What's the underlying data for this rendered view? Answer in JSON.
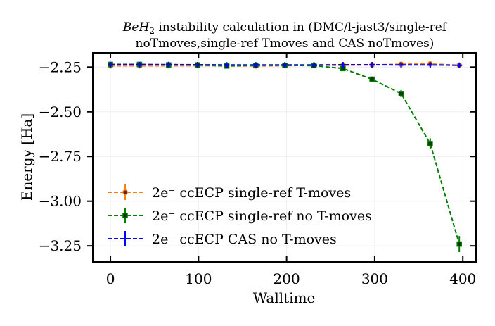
{
  "chart_data": {
    "type": "line",
    "title_line1_italic": "BeH",
    "title_line1_subscript": "2",
    "title_line1_rest": " instability calculation in (DMC/l-jast3/single-ref",
    "title_line2": "noTmoves,single-ref Tmoves and CAS noTmoves)",
    "xlabel": "Walltime",
    "ylabel": "Energy [Ha]",
    "xlim": [
      -20,
      415
    ],
    "ylim": [
      -3.34,
      -2.17
    ],
    "xticks": [
      0,
      100,
      200,
      300,
      400
    ],
    "xtick_labels": [
      "0",
      "100",
      "200",
      "300",
      "400"
    ],
    "yticks": [
      -2.25,
      -2.5,
      -2.75,
      -3.0,
      -3.25
    ],
    "ytick_labels": [
      "−2.25",
      "−2.50",
      "−2.75",
      "−3.00",
      "−3.25"
    ],
    "grid": true,
    "legend_position": "lower-left",
    "series": [
      {
        "name": "2e⁻ ccECP single-ref T-moves",
        "color": "#ff7f0e",
        "marker": "circle",
        "x": [
          0,
          33,
          66,
          99,
          132,
          165,
          198,
          231,
          264,
          297,
          330,
          363,
          396
        ],
        "y": [
          -2.243,
          -2.243,
          -2.243,
          -2.242,
          -2.243,
          -2.244,
          -2.242,
          -2.24,
          -2.24,
          -2.238,
          -2.234,
          -2.232,
          -2.24
        ],
        "yerr": [
          0.005,
          0.005,
          0.005,
          0.005,
          0.005,
          0.005,
          0.005,
          0.005,
          0.005,
          0.005,
          0.005,
          0.005,
          0.005
        ]
      },
      {
        "name": "2e⁻ ccECP single-ref no T-moves",
        "color": "#008000",
        "marker": "square",
        "x": [
          0,
          33,
          66,
          99,
          132,
          165,
          198,
          231,
          264,
          297,
          330,
          363,
          396
        ],
        "y": [
          -2.235,
          -2.235,
          -2.238,
          -2.238,
          -2.244,
          -2.24,
          -2.24,
          -2.242,
          -2.258,
          -2.318,
          -2.398,
          -2.678,
          -3.24
        ],
        "yerr": [
          0.008,
          0.008,
          0.008,
          0.008,
          0.01,
          0.008,
          0.008,
          0.008,
          0.012,
          0.015,
          0.02,
          0.03,
          0.045
        ]
      },
      {
        "name": "2e⁻ ccECP CAS no T-moves",
        "color": "#0000ff",
        "marker": "plus",
        "x": [
          0,
          33,
          66,
          99,
          132,
          165,
          198,
          231,
          264,
          297,
          330,
          363,
          396
        ],
        "y": [
          -2.236,
          -2.236,
          -2.236,
          -2.237,
          -2.238,
          -2.238,
          -2.238,
          -2.238,
          -2.237,
          -2.237,
          -2.238,
          -2.238,
          -2.24
        ],
        "yerr": [
          0.01,
          0.01,
          0.01,
          0.01,
          0.01,
          0.01,
          0.01,
          0.01,
          0.01,
          0.01,
          0.01,
          0.01,
          0.01
        ]
      }
    ]
  }
}
